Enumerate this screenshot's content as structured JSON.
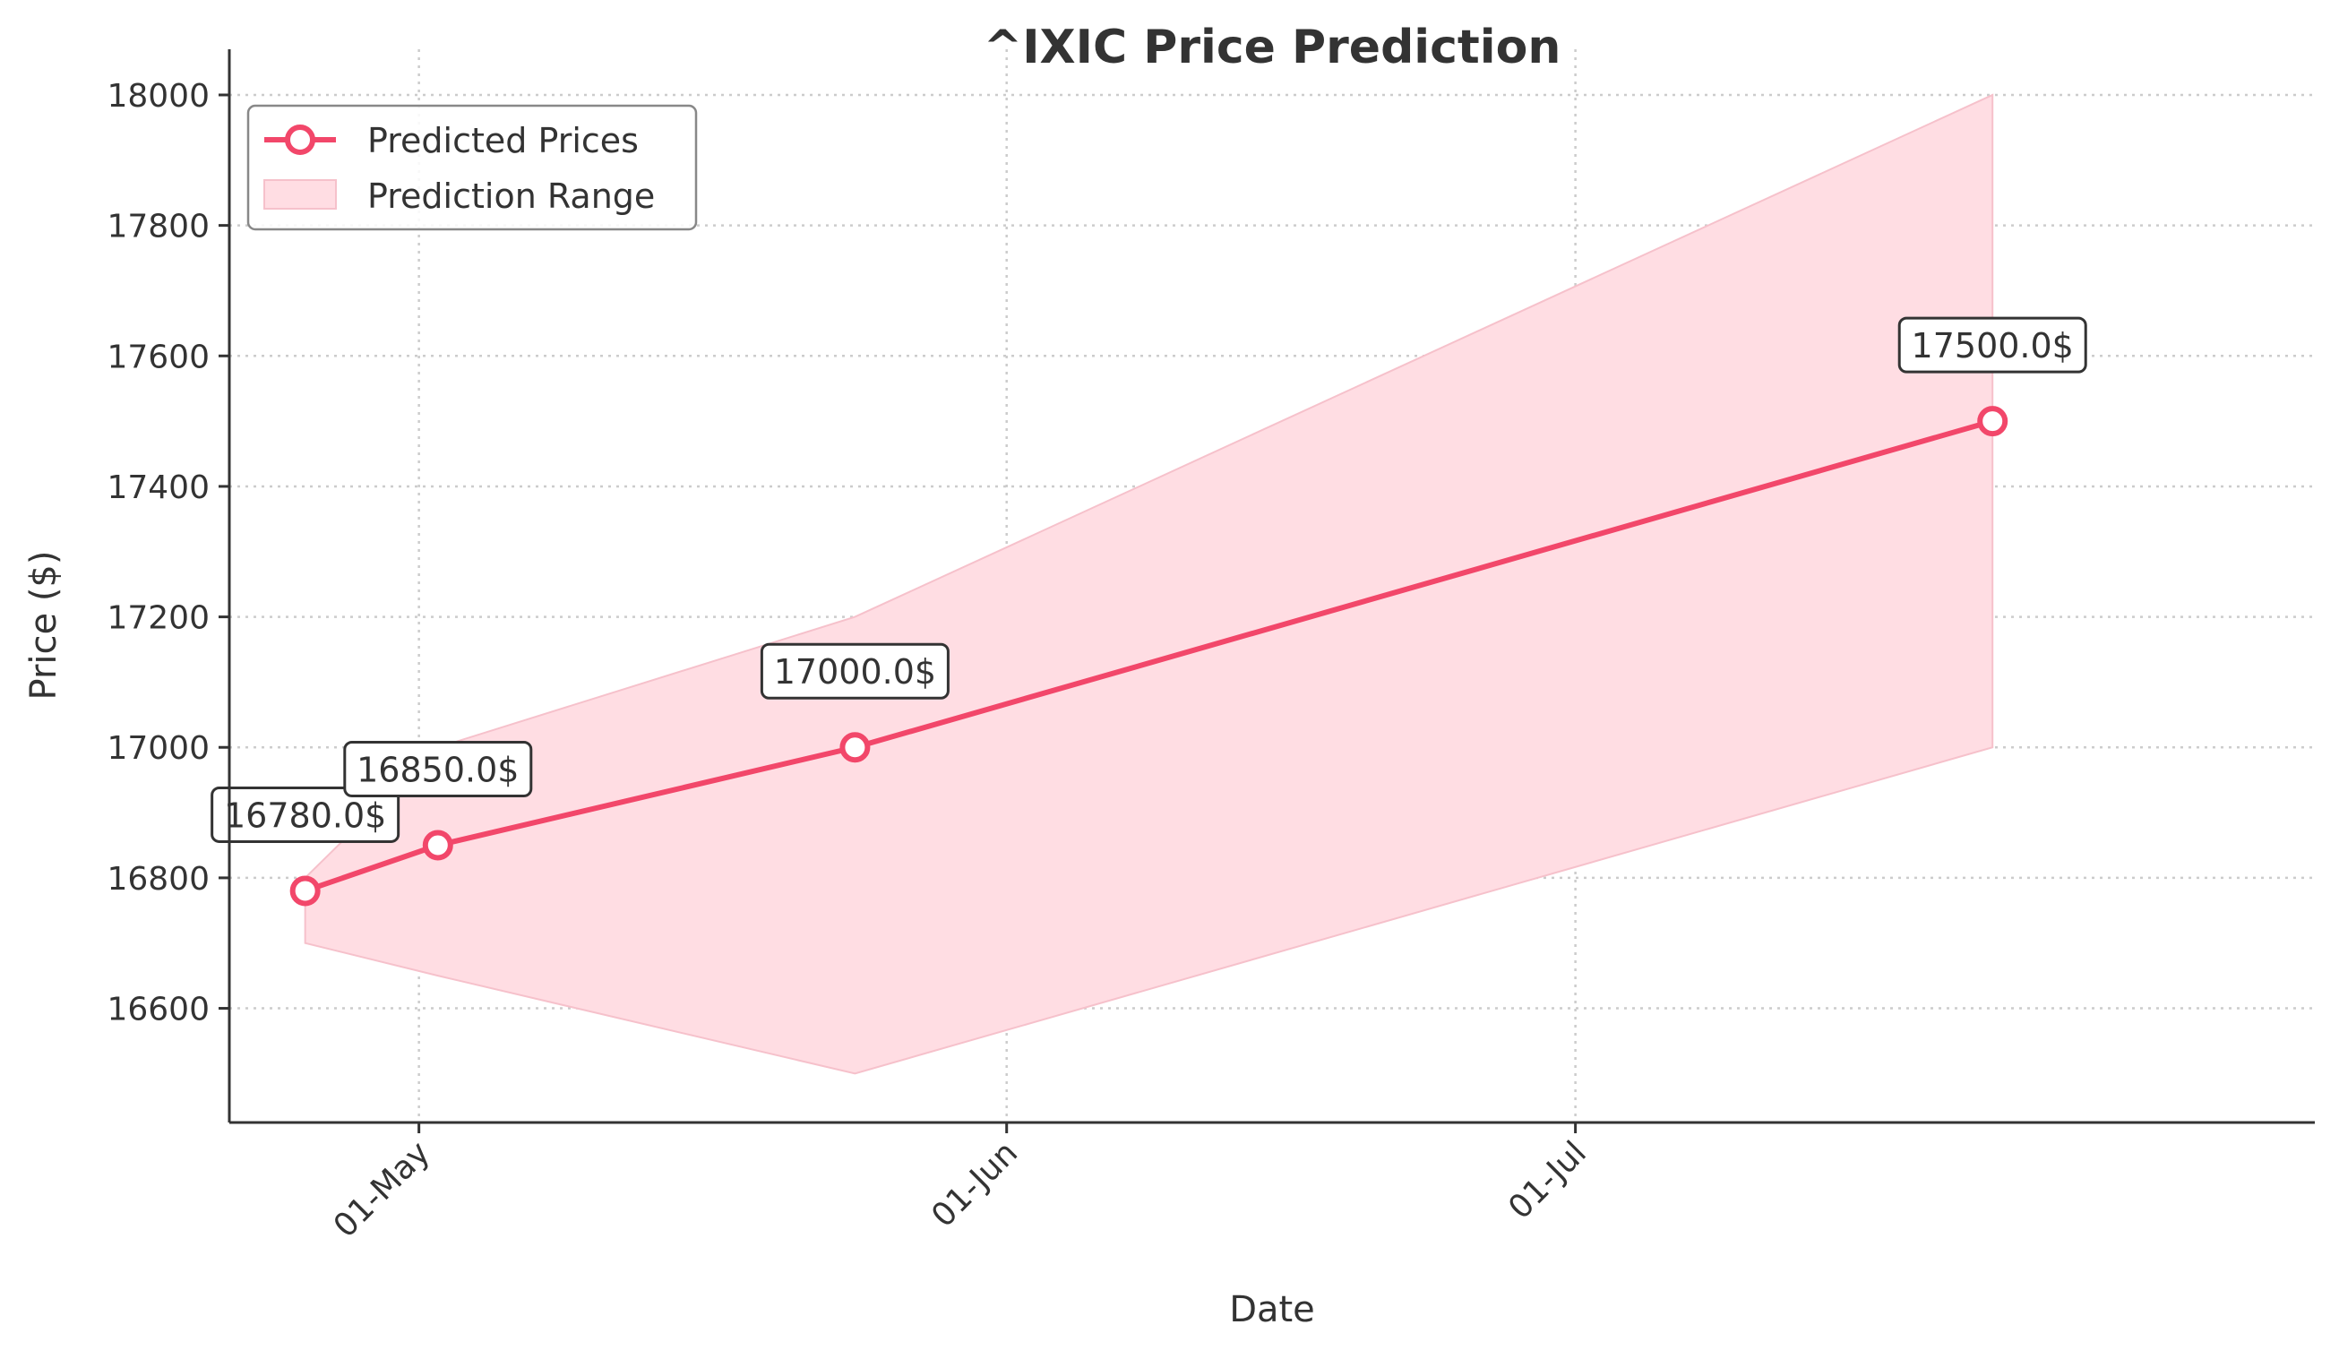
{
  "chart_data": {
    "type": "line",
    "title": "^IXIC Price Prediction",
    "xlabel": "Date",
    "ylabel": "Price ($)",
    "x": [
      "2024-04-25",
      "2024-05-02",
      "2024-05-24",
      "2024-07-23"
    ],
    "series": [
      {
        "name": "Predicted Prices",
        "values": [
          16780,
          16850,
          17000,
          17500
        ],
        "color": "#f2476a",
        "data_labels": [
          "16780.0$",
          "16850.0$",
          "17000.0$",
          "17500.0$"
        ]
      }
    ],
    "range": {
      "name": "Prediction Range",
      "lower": [
        16700,
        16650,
        16500,
        17000
      ],
      "upper": [
        16800,
        17000,
        17200,
        18000
      ],
      "color": "#ffdde3"
    },
    "ylim": [
      16425,
      18070
    ],
    "xlim": [
      "2024-04-21",
      "2024-08-09"
    ],
    "yticks": [
      16600,
      16800,
      17000,
      17200,
      17400,
      17600,
      17800,
      18000
    ],
    "xticks": [
      {
        "date": "2024-05-01",
        "label": "01-May"
      },
      {
        "date": "2024-06-01",
        "label": "01-Jun"
      },
      {
        "date": "2024-07-01",
        "label": "01-Jul"
      }
    ],
    "grid": true,
    "legend_position": "top-left"
  }
}
